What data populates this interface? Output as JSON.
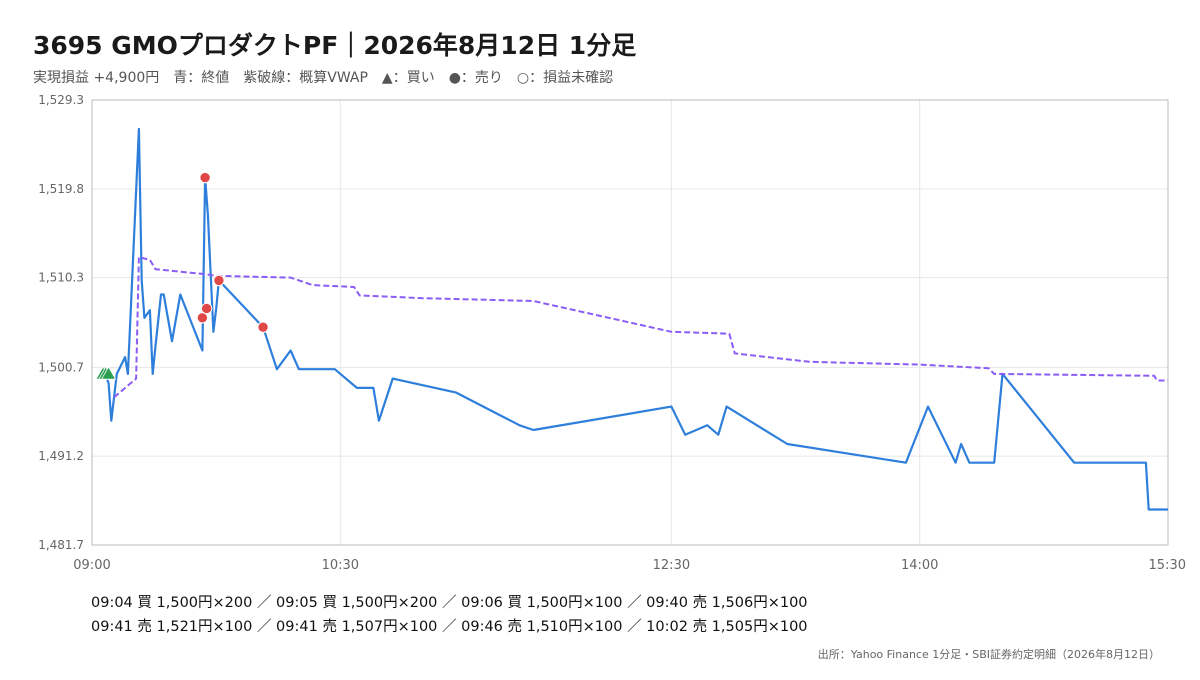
{
  "title": "3695 GMOプロダクトPF｜2026年8月12日 1分足",
  "subtitle": "実現損益 +4,900円　青：終値　紫破線：概算VWAP　▲：買い　●：売り　○：損益未確認",
  "trade_lines": [
    "09:04 買 1,500円×200 ／ 09:05 買 1,500円×200 ／ 09:06 買 1,500円×100 ／ 09:40 売 1,506円×100",
    "09:41 売 1,521円×100 ／ 09:41 売 1,507円×100 ／ 09:46 売 1,510円×100 ／ 10:02 売 1,505円×100"
  ],
  "source": "出所：Yahoo Finance 1分足・SBI証券約定明細（2026年8月12日）",
  "colors": {
    "close": "#2e7fdc",
    "vwap": "#8b5cf6",
    "buy": "#2a9d4e",
    "sell": "#e04848",
    "grid": "#e6e6e6",
    "axis": "#bbbbbb",
    "tick_text": "#666666"
  },
  "chart_data": {
    "type": "line",
    "x_range": [
      "09:00",
      "15:30"
    ],
    "ylim": [
      1481.7,
      1529.3
    ],
    "y_ticks": [
      "1,529.3",
      "1,519.8",
      "1,510.3",
      "1,500.7",
      "1,491.2",
      "1,481.7"
    ],
    "y_tick_values": [
      1529.3,
      1519.8,
      1510.3,
      1500.7,
      1491.2,
      1481.7
    ],
    "x_ticks": [
      "09:00",
      "10:30",
      "12:30",
      "14:00",
      "15:30"
    ],
    "grid": true,
    "series": [
      {
        "name": "終値",
        "style": "solid",
        "points": [
          [
            "09:04",
            1500.7
          ],
          [
            "09:06",
            1499.0
          ],
          [
            "09:07",
            1495.0
          ],
          [
            "09:09",
            1500.0
          ],
          [
            "09:12",
            1501.8
          ],
          [
            "09:13",
            1500.0
          ],
          [
            "09:17",
            1526.2
          ],
          [
            "09:18",
            1510.0
          ],
          [
            "09:19",
            1506.0
          ],
          [
            "09:21",
            1506.8
          ],
          [
            "09:22",
            1500.0
          ],
          [
            "09:23",
            1503.0
          ],
          [
            "09:25",
            1508.5
          ],
          [
            "09:26",
            1508.5
          ],
          [
            "09:29",
            1503.5
          ],
          [
            "09:32",
            1508.5
          ],
          [
            "09:40",
            1502.5
          ],
          [
            "09:41",
            1521.0
          ],
          [
            "09:42",
            1517.0
          ],
          [
            "09:44",
            1504.5
          ],
          [
            "09:45",
            1507.0
          ],
          [
            "09:46",
            1510.0
          ],
          [
            "10:02",
            1505.0
          ],
          [
            "10:07",
            1500.5
          ],
          [
            "10:12",
            1502.5
          ],
          [
            "10:15",
            1500.5
          ],
          [
            "10:28",
            1500.5
          ],
          [
            "10:36",
            1498.5
          ],
          [
            "10:42",
            1498.5
          ],
          [
            "10:44",
            1495.0
          ],
          [
            "10:49",
            1499.5
          ],
          [
            "11:12",
            1498.0
          ],
          [
            "11:35",
            1494.5
          ],
          [
            "11:40",
            1494.0
          ],
          [
            "12:30",
            1496.5
          ],
          [
            "12:35",
            1493.5
          ],
          [
            "12:43",
            1494.5
          ],
          [
            "12:47",
            1493.5
          ],
          [
            "12:50",
            1496.5
          ],
          [
            "13:12",
            1492.5
          ],
          [
            "13:55",
            1490.5
          ],
          [
            "14:03",
            1496.5
          ],
          [
            "14:13",
            1490.5
          ],
          [
            "14:15",
            1492.5
          ],
          [
            "14:18",
            1490.5
          ],
          [
            "14:27",
            1490.5
          ],
          [
            "14:30",
            1500.0
          ],
          [
            "14:56",
            1490.5
          ],
          [
            "15:22",
            1490.5
          ],
          [
            "15:23",
            1485.5
          ],
          [
            "15:30",
            1485.5
          ]
        ]
      },
      {
        "name": "概算VWAP",
        "style": "dashed",
        "points": [
          [
            "09:08",
            1497.5
          ],
          [
            "09:16",
            1499.5
          ],
          [
            "09:17",
            1512.5
          ],
          [
            "09:21",
            1512.2
          ],
          [
            "09:23",
            1511.2
          ],
          [
            "09:40",
            1510.7
          ],
          [
            "09:45",
            1510.5
          ],
          [
            "10:12",
            1510.3
          ],
          [
            "10:20",
            1509.5
          ],
          [
            "10:35",
            1509.3
          ],
          [
            "10:37",
            1508.4
          ],
          [
            "11:00",
            1508.1
          ],
          [
            "11:40",
            1507.8
          ],
          [
            "12:30",
            1504.5
          ],
          [
            "12:51",
            1504.3
          ],
          [
            "12:53",
            1502.2
          ],
          [
            "13:20",
            1501.3
          ],
          [
            "14:00",
            1501.0
          ],
          [
            "14:25",
            1500.6
          ],
          [
            "14:27",
            1500.0
          ],
          [
            "15:25",
            1499.8
          ],
          [
            "15:26",
            1499.3
          ],
          [
            "15:30",
            1499.3
          ]
        ]
      }
    ],
    "markers": [
      {
        "time": "09:04",
        "price": 1500.0,
        "side": "buy"
      },
      {
        "time": "09:05",
        "price": 1500.0,
        "side": "buy"
      },
      {
        "time": "09:06",
        "price": 1500.0,
        "side": "buy"
      },
      {
        "time": "09:40",
        "price": 1506.0,
        "side": "sell"
      },
      {
        "time": "09:41",
        "price": 1521.0,
        "side": "sell"
      },
      {
        "time": "09:41",
        "price": 1507.0,
        "side": "sell"
      },
      {
        "time": "09:46",
        "price": 1510.0,
        "side": "sell"
      },
      {
        "time": "10:02",
        "price": 1505.0,
        "side": "sell"
      }
    ]
  }
}
